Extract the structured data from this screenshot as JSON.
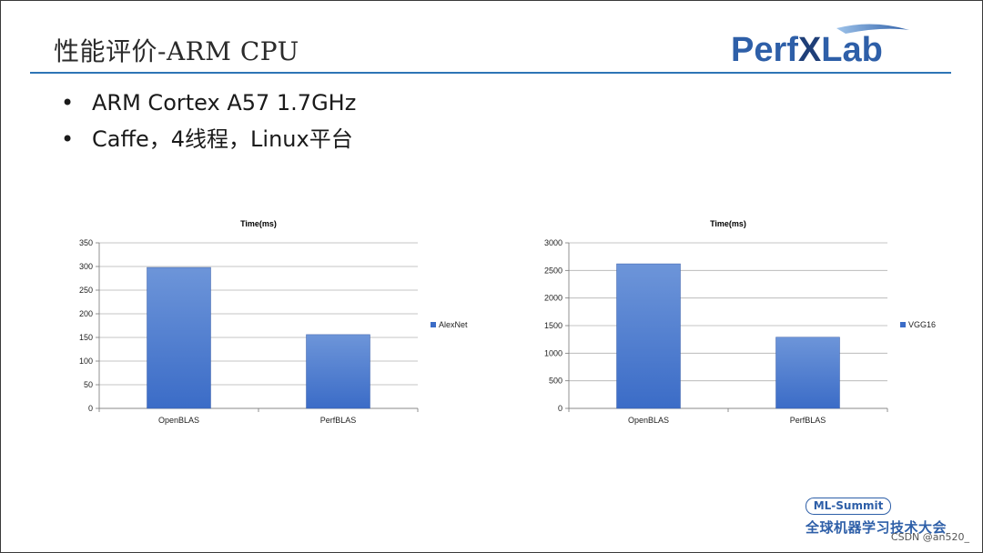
{
  "slide": {
    "title": "性能评价-ARM CPU",
    "logo": {
      "text_primary": "Perf",
      "text_x": "X",
      "text_secondary": "Lab",
      "color": "#2e5fa8"
    },
    "bullets": [
      {
        "marker": "•",
        "text": "ARM Cortex A57 1.7GHz"
      },
      {
        "marker": "•",
        "text": "Caffe，4线程，Linux平台"
      }
    ],
    "footer": {
      "badge": "ML-Summit",
      "event_name": "全球机器学习技术大会",
      "watermark": "CSDN @an520_"
    }
  },
  "colors": {
    "accent": "#2e75b6",
    "bar": "#3b6cc7",
    "bar_light": "#6d95d9"
  },
  "chart_data": [
    {
      "type": "bar",
      "title": "Time(ms)",
      "categories": [
        "OpenBLAS",
        "PerfBLAS"
      ],
      "series": [
        {
          "name": "AlexNet",
          "values": [
            298,
            156
          ]
        }
      ],
      "ylim": [
        0,
        350
      ],
      "yticks": [
        0,
        50,
        100,
        150,
        200,
        250,
        300,
        350
      ],
      "grid": true,
      "legend": "right"
    },
    {
      "type": "bar",
      "title": "Time(ms)",
      "categories": [
        "OpenBLAS",
        "PerfBLAS"
      ],
      "series": [
        {
          "name": "VGG16",
          "values": [
            2620,
            1290
          ]
        }
      ],
      "ylim": [
        0,
        3000
      ],
      "yticks": [
        0,
        500,
        1000,
        1500,
        2000,
        2500,
        3000
      ],
      "grid": true,
      "legend": "right"
    }
  ]
}
